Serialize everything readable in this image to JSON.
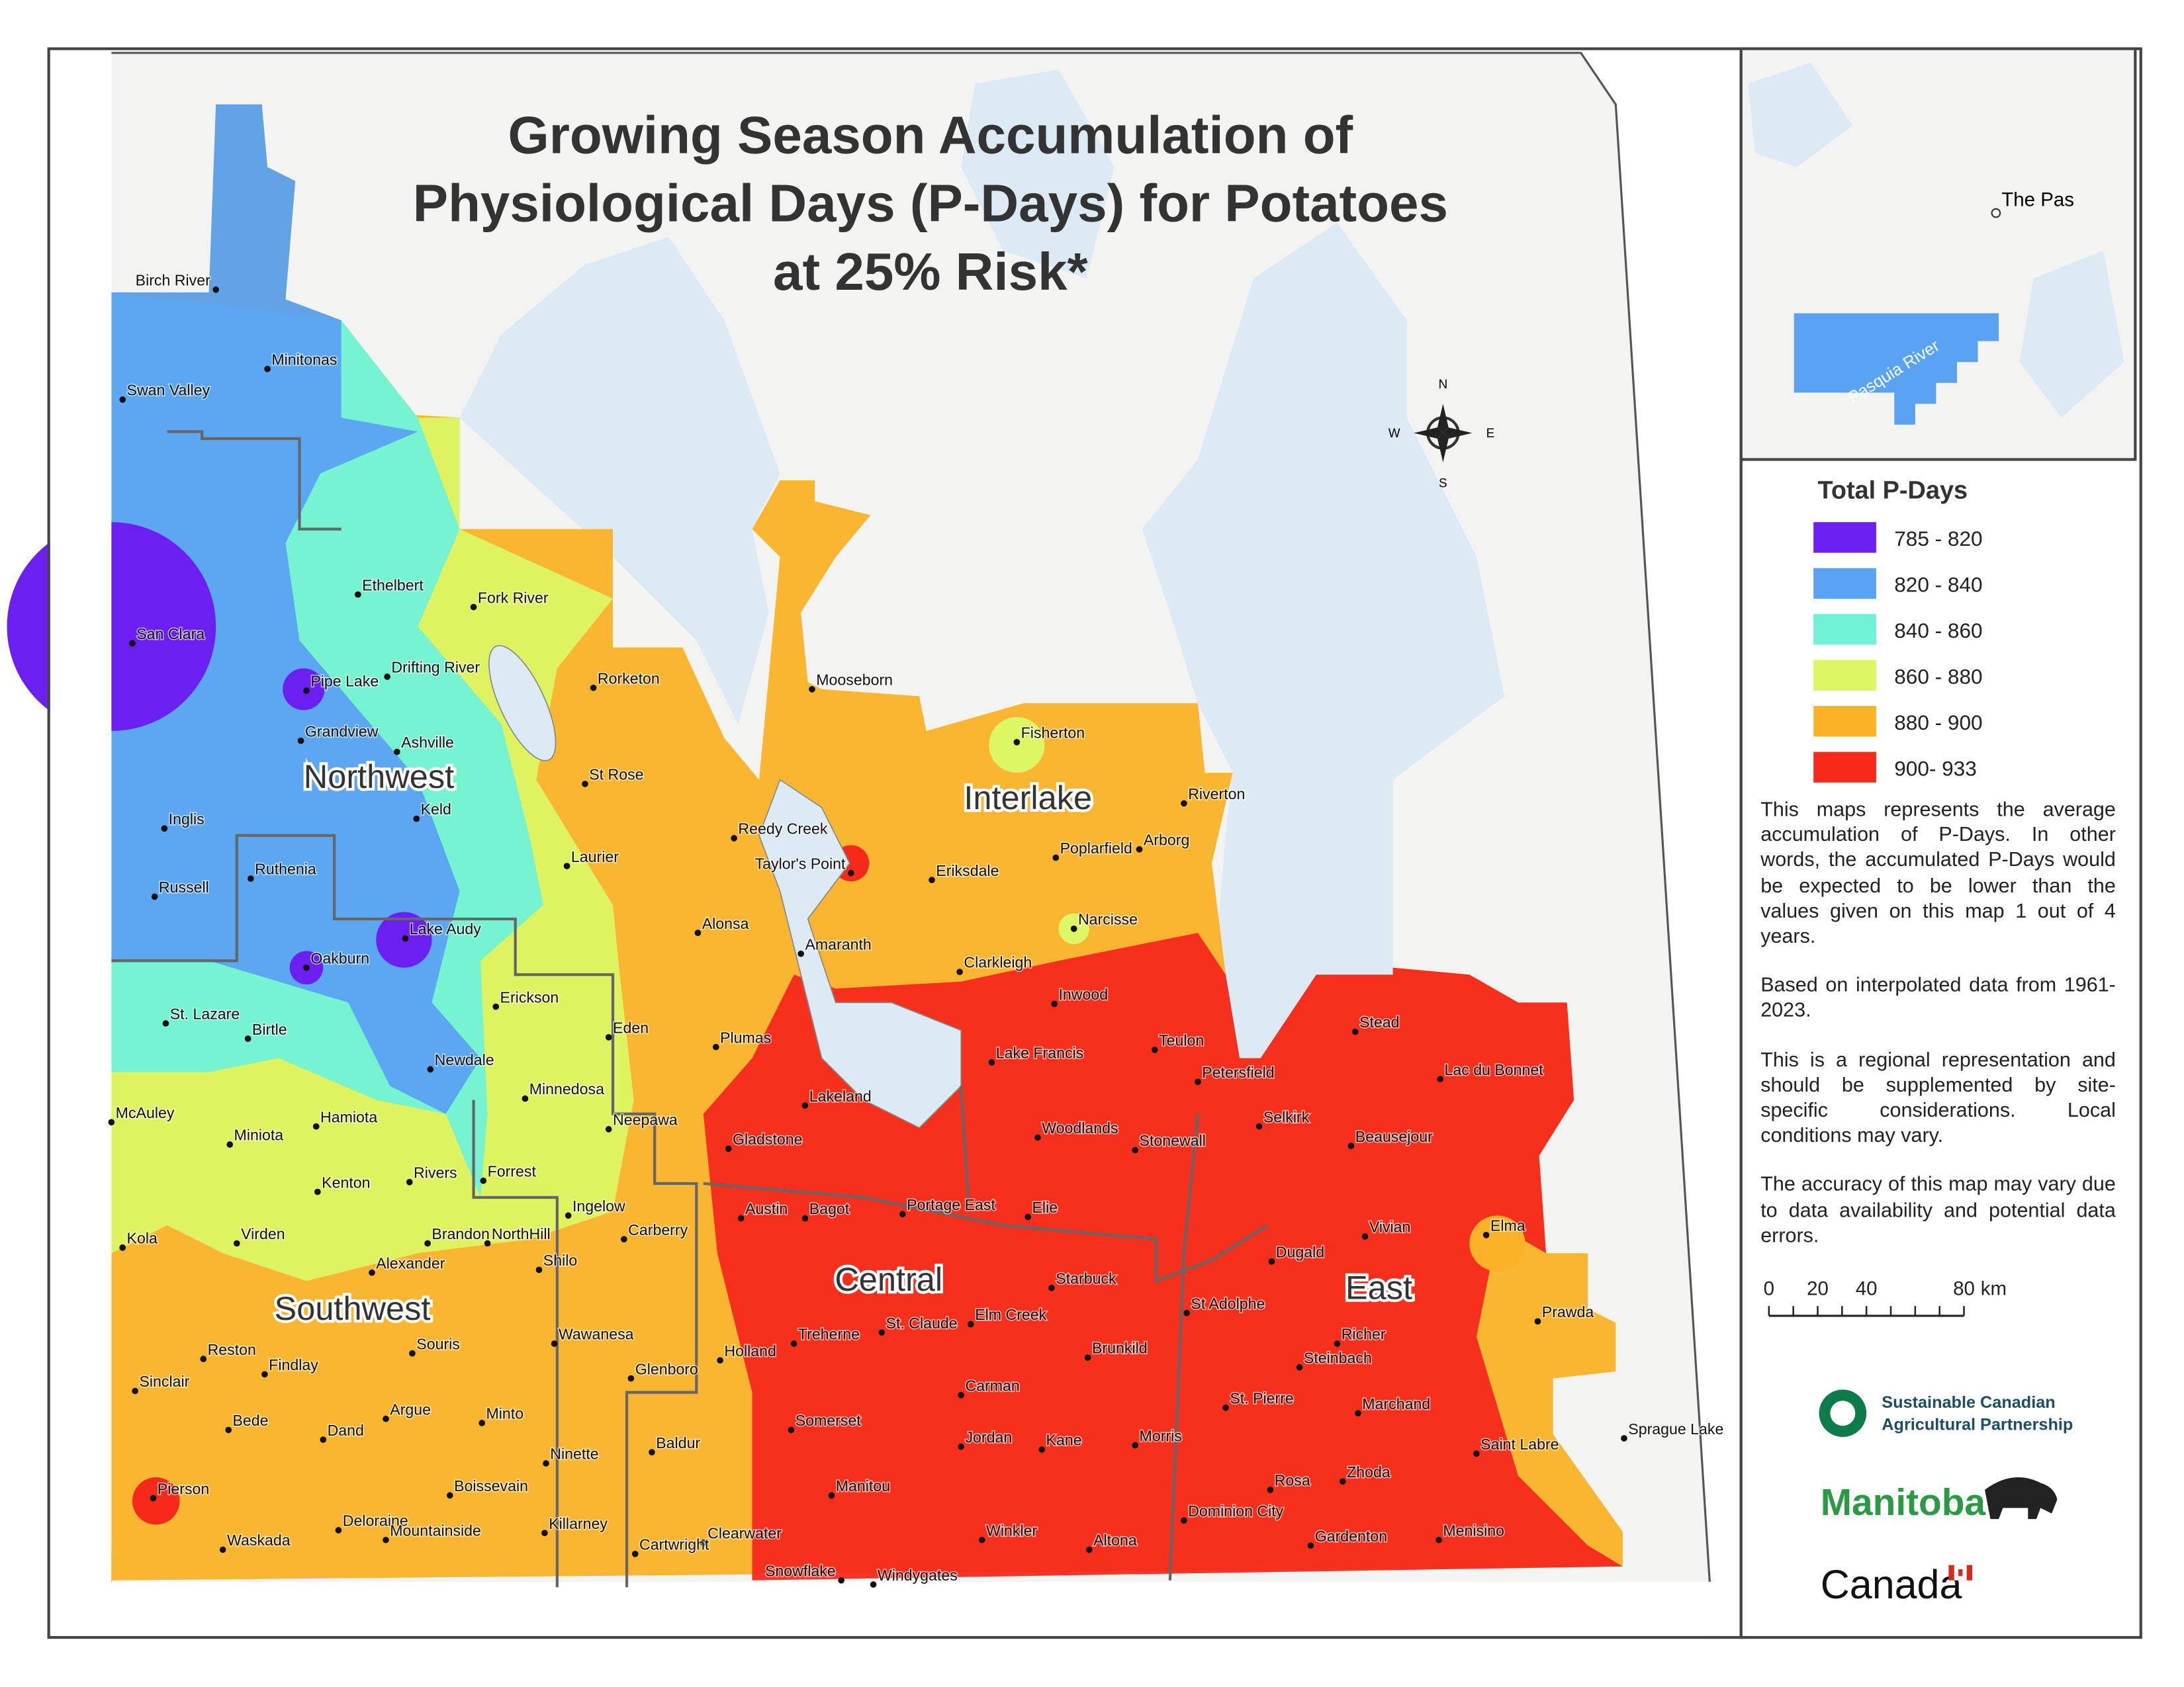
{
  "title": {
    "lines": [
      "Growing Season Accumulation of",
      "Physiological Days (P-Days) for Potatoes",
      "at 25% Risk*"
    ]
  },
  "legend": {
    "title": "Total P-Days",
    "items": [
      {
        "label": "785 - 820",
        "color": "#6b1ff0"
      },
      {
        "label": "820 - 840",
        "color": "#5aa2f2"
      },
      {
        "label": "840 - 860",
        "color": "#70f2d6"
      },
      {
        "label": "860 - 880",
        "color": "#dcf763"
      },
      {
        "label": "880 - 900",
        "color": "#fbb226"
      },
      {
        "label": "900- 933",
        "color": "#f6291b"
      }
    ]
  },
  "notes": [
    "This maps represents the average accumulation of P-Days. In other words, the accumulated P-Days would be expected to be lower than the values given on this map 1 out of 4 years.",
    "Based on interpolated data from 1961-2023.",
    "This is a regional representation and should be supplemented by site-specific considerations. Local conditions may vary.",
    "The accuracy of this map may vary due to data availability and potential data errors."
  ],
  "scale": {
    "labels": [
      0,
      20,
      40,
      80
    ],
    "unit": "km"
  },
  "compass": {
    "n": "N",
    "e": "E",
    "s": "S",
    "w": "W"
  },
  "regions": [
    "Northwest",
    "Interlake",
    "Central",
    "Southwest",
    "East"
  ],
  "places": [
    "Birch River",
    "Minitonas",
    "Swan Valley",
    "Ethelbert",
    "Fork River",
    "San Clara",
    "Drifting River",
    "Pipe Lake",
    "Rorketon",
    "Mooseborn",
    "Grandview",
    "Ashville",
    "Fisherton",
    "St Rose",
    "Riverton",
    "Keld",
    "Inglis",
    "Reedy Creek",
    "Arborg",
    "Laurier",
    "Ruthenia",
    "Poplarfield",
    "Taylor's Point",
    "Eriksdale",
    "Russell",
    "Narcisse",
    "Alonsa",
    "Lake Audy",
    "Amaranth",
    "Clarkleigh",
    "Oakburn",
    "Inwood",
    "Erickson",
    "St. Lazare",
    "Eden",
    "Birtle",
    "Plumas",
    "Stead",
    "Teulon",
    "Lake Francis",
    "Newdale",
    "Petersfield",
    "Lac du Bonnet",
    "Minnedosa",
    "Lakeland",
    "McAuley",
    "Hamiota",
    "Neepawa",
    "Selkirk",
    "Woodlands",
    "Miniota",
    "Stonewall",
    "Gladstone",
    "Beausejour",
    "Forrest",
    "Rivers",
    "Kenton",
    "Ingelow",
    "Austin",
    "Bagot",
    "Portage East",
    "Elie",
    "Carberry",
    "Vivian",
    "Elma",
    "Kola",
    "Virden",
    "Brandon",
    "NorthHill",
    "Dugald",
    "Alexander",
    "Shilo",
    "Starbuck",
    "St Adolphe",
    "Prawda",
    "Holland",
    "St. Claude",
    "Elm Creek",
    "Treherne",
    "Richer",
    "Wawanesa",
    "Souris",
    "Reston",
    "Brunkild",
    "Steinbach",
    "Findlay",
    "Glenboro",
    "Sinclair",
    "Carman",
    "St. Pierre",
    "Marchand",
    "Argue",
    "Minto",
    "Bede",
    "Somerset",
    "Dand",
    "Sprague Lake",
    "Jordan",
    "Kane",
    "Morris",
    "Baldur",
    "Saint Labre",
    "Ninette",
    "Zhoda",
    "Rosa",
    "Manitou",
    "Boissevain",
    "Pierson",
    "Dominion City",
    "Deloraine",
    "Killarney",
    "Menisino",
    "Winkler",
    "Waskada",
    "Mountainside",
    "Clearwater",
    "Altona",
    "Gardenton",
    "Cartwright",
    "Snowflake",
    "Windygates"
  ],
  "inset": {
    "places": [
      "The Pas"
    ],
    "rivers": [
      "Pasquia River"
    ]
  },
  "logos": {
    "scap": [
      "Sustainable Canadian",
      "Agricultural Partnership"
    ],
    "manitoba": "Manitoba",
    "canada": "Canada"
  }
}
